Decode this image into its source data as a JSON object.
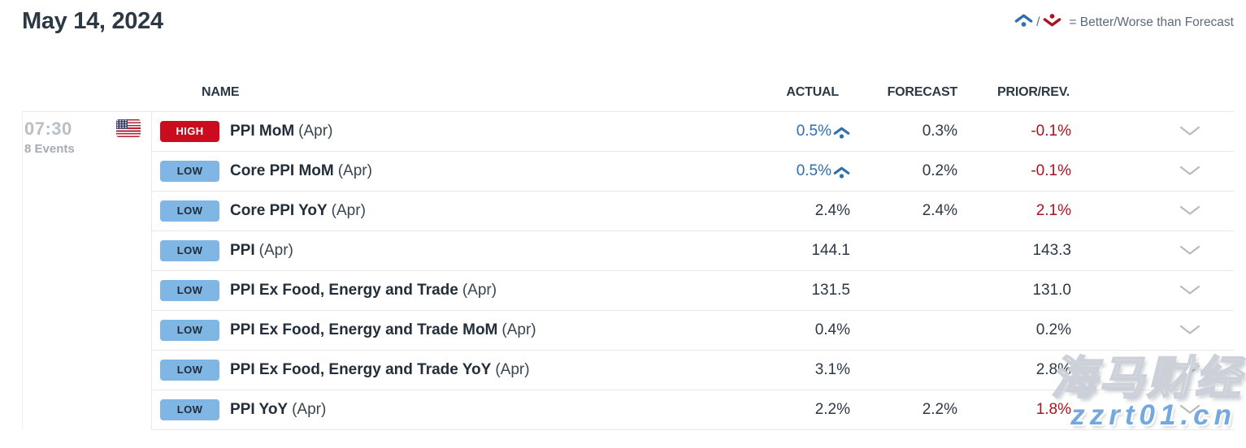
{
  "title": "May 14, 2024",
  "legend": {
    "better_icon": "chevron-up-dot-icon",
    "worse_icon": "chevron-down-dot-icon",
    "separator": "/",
    "label": "= Better/Worse than Forecast"
  },
  "table": {
    "columns": {
      "name": "NAME",
      "actual": "ACTUAL",
      "forecast": "FORECAST",
      "prior": "PRIOR/REV."
    },
    "time_group": {
      "time": "07:30",
      "events": "8 Events",
      "flag": "us-flag"
    },
    "rows": [
      {
        "importance": "HIGH",
        "name": "PPI MoM",
        "period": "(Apr)",
        "actual": "0.5%",
        "better": true,
        "forecast": "0.3%",
        "prior": "-0.1%",
        "prior_revised": true
      },
      {
        "importance": "LOW",
        "name": "Core PPI MoM",
        "period": "(Apr)",
        "actual": "0.5%",
        "better": true,
        "forecast": "0.2%",
        "prior": "-0.1%",
        "prior_revised": true
      },
      {
        "importance": "LOW",
        "name": "Core PPI YoY",
        "period": "(Apr)",
        "actual": "2.4%",
        "better": false,
        "forecast": "2.4%",
        "prior": "2.1%",
        "prior_revised": true
      },
      {
        "importance": "LOW",
        "name": "PPI",
        "period": "(Apr)",
        "actual": "144.1",
        "better": false,
        "forecast": "",
        "prior": "143.3",
        "prior_revised": false
      },
      {
        "importance": "LOW",
        "name": "PPI Ex Food, Energy and Trade",
        "period": "(Apr)",
        "actual": "131.5",
        "better": false,
        "forecast": "",
        "prior": "131.0",
        "prior_revised": false
      },
      {
        "importance": "LOW",
        "name": "PPI Ex Food, Energy and Trade MoM",
        "period": "(Apr)",
        "actual": "0.4%",
        "better": false,
        "forecast": "",
        "prior": "0.2%",
        "prior_revised": false
      },
      {
        "importance": "LOW",
        "name": "PPI Ex Food, Energy and Trade YoY",
        "period": "(Apr)",
        "actual": "3.1%",
        "better": false,
        "forecast": "",
        "prior": "2.8%",
        "prior_revised": false
      },
      {
        "importance": "LOW",
        "name": "PPI YoY",
        "period": "(Apr)",
        "actual": "2.2%",
        "better": false,
        "forecast": "2.2%",
        "prior": "1.8%",
        "prior_revised": true
      }
    ]
  },
  "watermark": {
    "line1": "海马财经",
    "line2": "zzrt01.cn"
  },
  "colors": {
    "c-better": "#2e6fb0",
    "c-worse": "#a8131f",
    "c-high": "#cb0c1e",
    "c-low": "#7fb6e4",
    "c-dark": "#2c3844",
    "c-name": "#232e3a",
    "c-gray": "#a5acb5",
    "c-gray-light": "#b9bfc7",
    "c-line": "#e7e8ea",
    "c-legend": "#5a6b7d",
    "c-chevron": "#b7bbbf",
    "c-wm-blue": "#74a9e0"
  }
}
